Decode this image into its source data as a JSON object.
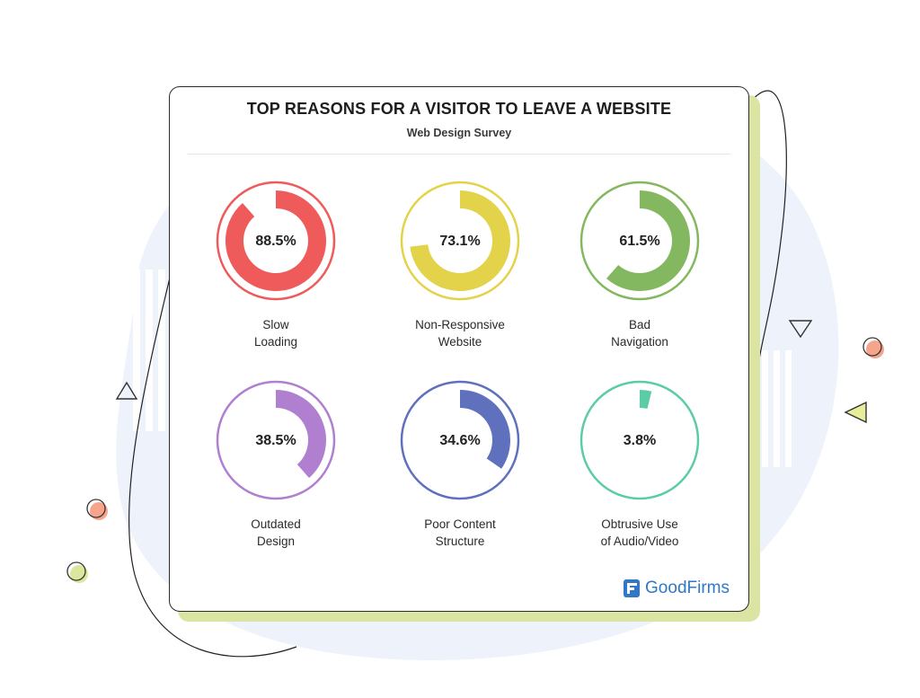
{
  "title": "TOP REASONS FOR A VISITOR TO LEAVE A WEBSITE",
  "subtitle": "Web Design Survey",
  "brand": {
    "name": "GoodFirms",
    "color": "#2f78c7"
  },
  "chart_data": {
    "type": "pie",
    "title": "TOP REASONS FOR A VISITOR TO LEAVE A WEBSITE",
    "subtitle": "Web Design Survey",
    "items": [
      {
        "display": "88.5%",
        "value": 88.5,
        "label_line1": "Slow",
        "label_line2": "Loading",
        "color": "#ef5b5b"
      },
      {
        "display": "73.1%",
        "value": 73.1,
        "label_line1": "Non-Responsive",
        "label_line2": "Website",
        "color": "#e3d34a"
      },
      {
        "display": "61.5%",
        "value": 61.5,
        "label_line1": "Bad",
        "label_line2": "Navigation",
        "color": "#84b860"
      },
      {
        "display": "38.5%",
        "value": 38.5,
        "label_line1": "Outdated",
        "label_line2": "Design",
        "color": "#b07fd0"
      },
      {
        "display": "34.6%",
        "value": 34.6,
        "label_line1": "Poor Content",
        "label_line2": "Structure",
        "color": "#5f70bd"
      },
      {
        "display": "3.8%",
        "value": 3.8,
        "label_line1": "Obtrusive Use",
        "label_line2": "of Audio/Video",
        "color": "#5ccca5"
      }
    ]
  }
}
